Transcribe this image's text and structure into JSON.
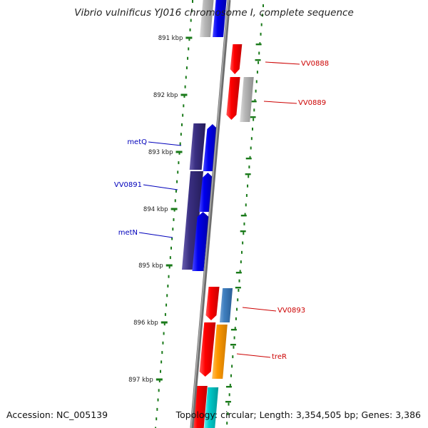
{
  "title": "Vibrio vulnificus YJ016 chromosome I, complete sequence",
  "footer": {
    "accession": "Accession: NC_005139",
    "topology": "Topology: circular; Length: 3,354,505 bp; Genes: 3,386"
  },
  "colors": {
    "backbone": "#888888",
    "tick": "#1a7a1a",
    "label_right": "#cc0000",
    "label_left": "#0000bb",
    "red": "#ff0000",
    "blue": "#0000ee",
    "purple": "#3a2f82",
    "gray": "#b8b8b8",
    "steelblue": "#3f7fbf",
    "orange": "#ff9900",
    "cyan": "#00cccc"
  },
  "scale_labels": [
    "891 kbp",
    "892 kbp",
    "893 kbp",
    "894 kbp",
    "895 kbp",
    "896 kbp",
    "897 kbp"
  ],
  "gene_labels": [
    {
      "text": "VV0888",
      "side": "right"
    },
    {
      "text": "VV0889",
      "side": "right"
    },
    {
      "text": "metQ",
      "side": "left"
    },
    {
      "text": "VV0891",
      "side": "left"
    },
    {
      "text": "metN",
      "side": "left"
    },
    {
      "text": "VV0893",
      "side": "right"
    },
    {
      "text": "treR",
      "side": "right"
    }
  ]
}
